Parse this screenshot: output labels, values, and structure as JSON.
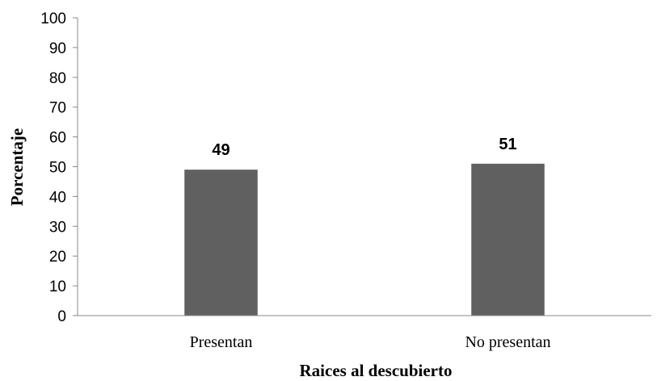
{
  "chart_data": {
    "type": "bar",
    "title": "",
    "xlabel": "Raices al descubierto",
    "ylabel": "Porcentaje",
    "categories": [
      "Presentan",
      "No presentan"
    ],
    "values": [
      49,
      51
    ],
    "data_labels": [
      "49",
      "51"
    ],
    "ylim": [
      0,
      100
    ],
    "yticks": [
      0,
      10,
      20,
      30,
      40,
      50,
      60,
      70,
      80,
      90,
      100
    ],
    "grid": false,
    "legend": "none",
    "bar_color": "#606060",
    "axis_color": "#888888"
  }
}
